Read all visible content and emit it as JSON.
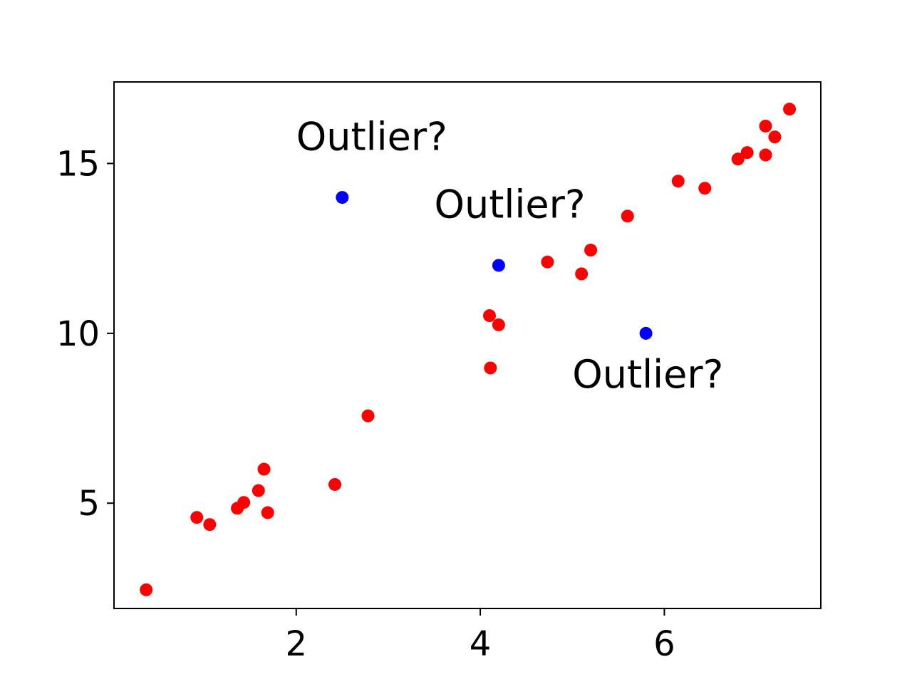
{
  "chart_data": {
    "type": "scatter",
    "title": "",
    "xlabel": "",
    "ylabel": "",
    "xlim": [
      0.02,
      7.7
    ],
    "ylim": [
      1.9,
      17.4
    ],
    "xticks": [
      2,
      4,
      6
    ],
    "yticks": [
      5,
      10,
      15
    ],
    "xtick_labels": [
      "2",
      "4",
      "6"
    ],
    "ytick_labels": [
      "5",
      "10",
      "15"
    ],
    "grid": false,
    "series": [
      {
        "color": "#ff0000",
        "points": [
          {
            "x": 0.37,
            "y": 2.45
          },
          {
            "x": 0.92,
            "y": 4.58
          },
          {
            "x": 1.06,
            "y": 4.37
          },
          {
            "x": 1.36,
            "y": 4.85
          },
          {
            "x": 1.43,
            "y": 5.02
          },
          {
            "x": 1.59,
            "y": 5.37
          },
          {
            "x": 1.65,
            "y": 6.0
          },
          {
            "x": 1.69,
            "y": 4.72
          },
          {
            "x": 2.42,
            "y": 5.55
          },
          {
            "x": 2.78,
            "y": 7.57
          },
          {
            "x": 4.1,
            "y": 10.52
          },
          {
            "x": 4.2,
            "y": 10.25
          },
          {
            "x": 4.11,
            "y": 8.98
          },
          {
            "x": 4.73,
            "y": 12.1
          },
          {
            "x": 5.1,
            "y": 11.75
          },
          {
            "x": 5.2,
            "y": 12.45
          },
          {
            "x": 5.6,
            "y": 13.45
          },
          {
            "x": 6.15,
            "y": 14.48
          },
          {
            "x": 6.44,
            "y": 14.27
          },
          {
            "x": 6.8,
            "y": 15.13
          },
          {
            "x": 6.9,
            "y": 15.32
          },
          {
            "x": 7.1,
            "y": 16.1
          },
          {
            "x": 7.1,
            "y": 15.25
          },
          {
            "x": 7.2,
            "y": 15.78
          },
          {
            "x": 7.36,
            "y": 16.6
          }
        ]
      },
      {
        "color": "#0000ff",
        "points": [
          {
            "x": 2.5,
            "y": 14.0
          },
          {
            "x": 4.2,
            "y": 12.0
          },
          {
            "x": 5.8,
            "y": 10.0
          }
        ]
      }
    ],
    "annotations": [
      {
        "text": "Outlier?",
        "x": 2.0,
        "y": 15.4
      },
      {
        "text": "Outlier?",
        "x": 3.5,
        "y": 13.4
      },
      {
        "text": "Outlier?",
        "x": 5.0,
        "y": 8.4
      }
    ]
  }
}
